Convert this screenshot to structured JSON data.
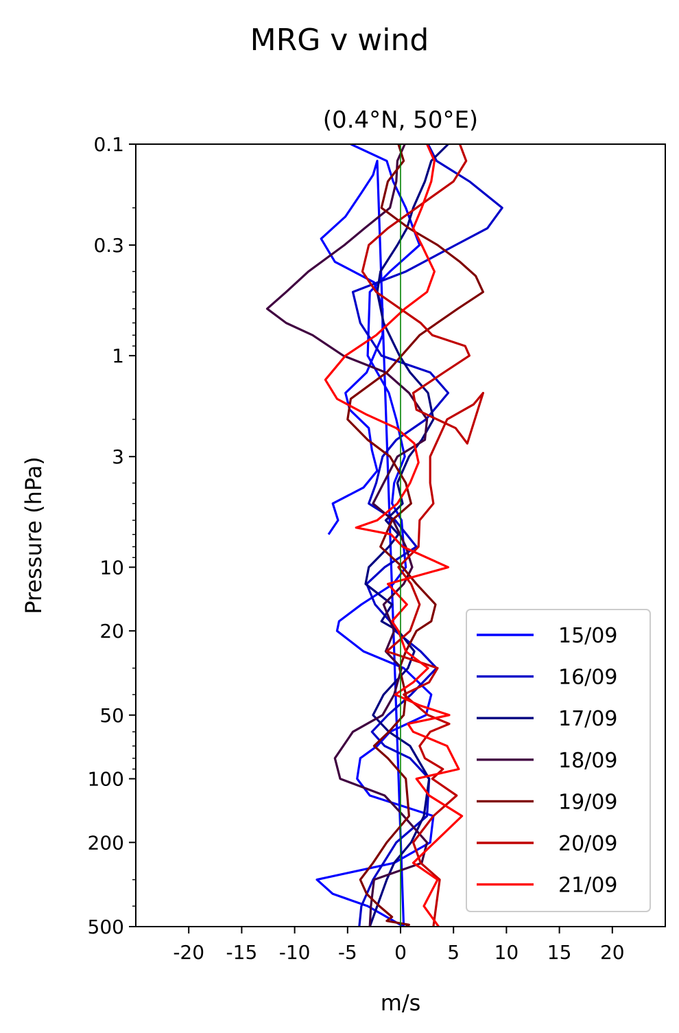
{
  "figure": {
    "suptitle": "MRG v wind"
  },
  "chart_data": {
    "type": "line",
    "title": "(0.4°N, 50°E)",
    "xlabel": "m/s",
    "ylabel": "Pressure (hPa)",
    "xlim": [
      -25,
      25
    ],
    "ylim": [
      500,
      0.1
    ],
    "yscale": "log",
    "grid": false,
    "legend_position": "lower-right",
    "x_ticks": [
      -20,
      -15,
      -10,
      -5,
      0,
      5,
      10,
      15,
      20
    ],
    "x_tick_labels": [
      "-20",
      "-15",
      "-10",
      "-5",
      "0",
      "5",
      "10",
      "15",
      "20"
    ],
    "y_ticks": [
      0.1,
      0.3,
      1,
      3,
      10,
      20,
      50,
      100,
      200,
      500
    ],
    "y_tick_labels": [
      "0.1",
      "0.3",
      "1",
      "3",
      "10",
      "20",
      "50",
      "100",
      "200",
      "500"
    ],
    "zero_line": {
      "x": 0,
      "color": "#008000"
    },
    "series": [
      {
        "name": "15/09",
        "color": "#0000ff",
        "x": [
          -4.7,
          -1.3,
          -0.7,
          0.5,
          1.2,
          1.8,
          -1.0,
          -2.9,
          -3.0,
          -3.1,
          -1.1,
          -0.4,
          0.4,
          -0.6,
          -0.8,
          0.1,
          0.3,
          0.5,
          -0.7,
          -3.7,
          -5.8,
          -6.0,
          -3.5,
          0.3,
          2.9,
          2.4,
          -1.0,
          -2.2,
          -3.8,
          -4.1,
          -2.9,
          3.1,
          2.8,
          -0.6,
          -7.9,
          -6.4,
          -3.1,
          0.3,
          -2.2,
          -2.6,
          -3.7,
          -5.2,
          -7.5,
          -6.2,
          -2.5,
          -1.7,
          -1.7,
          -3.2,
          -5.2,
          -4.8,
          -3.0,
          -2.7,
          -2.2,
          -3.5,
          -6.4,
          -5.9,
          -6.8
        ],
        "y": [
          0.1,
          0.12,
          0.15,
          0.2,
          0.25,
          0.3,
          0.4,
          0.5,
          0.7,
          1.0,
          1.5,
          2.0,
          3.0,
          4.0,
          5.0,
          6.0,
          8.0,
          10.0,
          12.0,
          15.0,
          18.0,
          20.0,
          25.0,
          30.0,
          40.0,
          50.0,
          60.0,
          70.0,
          80.0,
          100.0,
          120.0,
          150.0,
          200.0,
          250.0,
          300.0,
          350.0,
          400.0,
          500.0,
          0.12,
          0.14,
          0.17,
          0.22,
          0.28,
          0.36,
          0.45,
          0.6,
          0.8,
          1.2,
          1.5,
          1.8,
          2.2,
          2.8,
          3.5,
          4.2,
          5.0,
          6.0,
          7.0
        ]
      },
      {
        "name": "16/09",
        "color": "#0000c8",
        "x": [
          2.6,
          3.4,
          6.5,
          9.6,
          8.2,
          5.2,
          0.5,
          -4.5,
          -3.8,
          -1.8,
          2.8,
          4.5,
          2.4,
          -0.4,
          -1.7,
          -2.3,
          -3.0,
          -0.5,
          1.5,
          -1.5,
          -3.2,
          -2.4,
          -1.0,
          -0.5,
          1.9,
          3.4,
          1.0,
          -1.2,
          -2.7,
          -1.5,
          0.9,
          2.7,
          2.5,
          -0.4,
          -2.6,
          -3.7,
          -3.9
        ],
        "y": [
          0.1,
          0.12,
          0.15,
          0.2,
          0.25,
          0.3,
          0.4,
          0.5,
          0.7,
          1.0,
          1.2,
          1.5,
          2.0,
          2.5,
          3.0,
          4.0,
          5.0,
          6.0,
          8.0,
          10.0,
          12.0,
          15.0,
          18.0,
          20.0,
          25.0,
          30.0,
          40.0,
          50.0,
          60.0,
          70.0,
          80.0,
          100.0,
          150.0,
          200.0,
          300.0,
          400.0,
          500.0
        ]
      },
      {
        "name": "17/09",
        "color": "#000080",
        "x": [
          4.5,
          2.9,
          2.3,
          1.2,
          0.6,
          -0.3,
          -1.9,
          -2.2,
          -1.6,
          -0.1,
          0.9,
          2.6,
          3.1,
          2.0,
          0.8,
          -0.3,
          0.2,
          -1.4,
          -0.2,
          -1.1,
          -3.0,
          -3.3,
          -0.8,
          -1.8,
          -0.2,
          1.3,
          0.7,
          -1.6,
          -2.6,
          -1.1,
          0.9,
          2.7,
          2.2,
          1.0,
          -0.6,
          -1.3,
          -2.9
        ],
        "y": [
          0.1,
          0.12,
          0.15,
          0.2,
          0.25,
          0.3,
          0.4,
          0.5,
          0.7,
          1.0,
          1.2,
          1.5,
          2.0,
          2.5,
          3.0,
          4.0,
          5.0,
          6.0,
          7.0,
          8.0,
          10.0,
          12.0,
          15.0,
          18.0,
          20.0,
          25.0,
          30.0,
          40.0,
          50.0,
          60.0,
          70.0,
          100.0,
          150.0,
          200.0,
          250.0,
          300.0,
          500.0
        ]
      },
      {
        "name": "18/09",
        "color": "#400040",
        "x": [
          0.4,
          -0.3,
          -0.4,
          -1.0,
          -3.4,
          -5.3,
          -8.7,
          -10.8,
          -12.6,
          -10.8,
          -8.3,
          -5.4,
          -1.4,
          0.8,
          2.5,
          2.3,
          -0.3,
          -1.6,
          -2.6,
          -0.7,
          0.5,
          1.1,
          0.3,
          -1.6,
          -0.6,
          -1.4,
          0.1,
          -0.6,
          -1.7,
          -4.5,
          -6.2,
          -5.7,
          -1.5,
          0.3,
          2.5,
          2.0,
          -2.5,
          -2.8,
          -2.9
        ],
        "y": [
          0.1,
          0.12,
          0.15,
          0.2,
          0.25,
          0.3,
          0.4,
          0.5,
          0.6,
          0.7,
          0.8,
          1.0,
          1.2,
          1.5,
          2.0,
          2.5,
          3.0,
          4.0,
          5.0,
          6.0,
          8.0,
          10.0,
          12.0,
          15.0,
          20.0,
          25.0,
          30.0,
          40.0,
          50.0,
          60.0,
          80.0,
          100.0,
          120.0,
          150.0,
          200.0,
          250.0,
          300.0,
          400.0,
          500.0
        ]
      },
      {
        "name": "19/09",
        "color": "#800000",
        "x": [
          -0.2,
          0.3,
          -1.2,
          -1.8,
          0.8,
          3.5,
          5.6,
          7.1,
          7.8,
          5.4,
          1.8,
          -1.3,
          -4.7,
          -5.0,
          -3.1,
          -1.0,
          0.5,
          1.0,
          -0.8,
          -1.9,
          0.2,
          1.5,
          3.3,
          2.9,
          1.5,
          0.5,
          -0.1,
          0.5,
          0.3,
          -1.1,
          -2.5,
          -1.2,
          0.5,
          0.8,
          -1.3,
          -2.6,
          -3.8,
          -3.2,
          -2.0,
          -0.8,
          -1.3,
          0.8,
          0.5
        ],
        "y": [
          0.1,
          0.12,
          0.15,
          0.2,
          0.25,
          0.3,
          0.36,
          0.42,
          0.5,
          0.6,
          0.8,
          1.2,
          1.6,
          2.0,
          2.5,
          3.0,
          4.0,
          5.0,
          6.0,
          8.0,
          10.0,
          12.0,
          15.0,
          18.0,
          20.0,
          25.0,
          30.0,
          40.0,
          50.0,
          60.0,
          70.0,
          80.0,
          100.0,
          150.0,
          200.0,
          250.0,
          300.0,
          350.0,
          400.0,
          450.0,
          470.0,
          490.0,
          500.0
        ]
      },
      {
        "name": "20/09",
        "color": "#c00000",
        "x": [
          5.6,
          6.2,
          5.0,
          1.5,
          -1.2,
          -3.0,
          -3.6,
          -2.3,
          1.9,
          3.0,
          6.1,
          6.5,
          4.1,
          1.2,
          1.5,
          5.2,
          6.3,
          7.8,
          6.9,
          4.4,
          2.8,
          2.8,
          3.1,
          1.8,
          1.7,
          -0.2,
          1.0,
          1.8,
          0.9,
          -1.3,
          3.5,
          2.7,
          0.3,
          2.6,
          4.6,
          2.8,
          1.8,
          2.3,
          4.0,
          3.0,
          5.3,
          3.1,
          1.2,
          1.9,
          3.7,
          3.1
        ],
        "y": [
          0.1,
          0.12,
          0.15,
          0.2,
          0.25,
          0.3,
          0.4,
          0.5,
          0.7,
          0.8,
          0.9,
          1.0,
          1.2,
          1.5,
          1.8,
          2.2,
          2.6,
          1.5,
          1.7,
          2.0,
          3.0,
          4.0,
          5.0,
          6.0,
          8.0,
          10.0,
          12.0,
          15.0,
          20.0,
          25.0,
          30.0,
          35.0,
          40.0,
          50.0,
          55.0,
          60.0,
          70.0,
          80.0,
          90.0,
          100.0,
          120.0,
          150.0,
          200.0,
          250.0,
          300.0,
          500.0
        ]
      },
      {
        "name": "21/09",
        "color": "#ff0000",
        "x": [
          2.5,
          3.2,
          2.9,
          2.0,
          1.2,
          2.0,
          3.2,
          2.5,
          0.4,
          -2.3,
          -5.2,
          -7.1,
          -6.0,
          -3.2,
          -0.4,
          1.3,
          1.7,
          0.9,
          -0.3,
          -2.2,
          -4.2,
          -0.9,
          0.2,
          4.5,
          -1.2,
          0.6,
          -0.8,
          -0.2,
          0.5,
          2.6,
          1.2,
          -0.5,
          1.8,
          4.6,
          0.7,
          1.2,
          4.4,
          5.5,
          1.5,
          2.7,
          5.8,
          3.2,
          1.2,
          3.5,
          2.2,
          3.6
        ],
        "y": [
          0.1,
          0.12,
          0.15,
          0.2,
          0.25,
          0.3,
          0.4,
          0.5,
          0.6,
          0.8,
          1.0,
          1.3,
          1.6,
          1.9,
          2.2,
          2.6,
          3.2,
          4.0,
          5.0,
          6.0,
          6.5,
          7.0,
          8.0,
          10.0,
          12.0,
          15.0,
          18.0,
          20.0,
          25.0,
          30.0,
          35.0,
          40.0,
          45.0,
          50.0,
          55.0,
          60.0,
          70.0,
          90.0,
          100.0,
          120.0,
          150.0,
          200.0,
          250.0,
          300.0,
          400.0,
          500.0
        ]
      }
    ]
  }
}
